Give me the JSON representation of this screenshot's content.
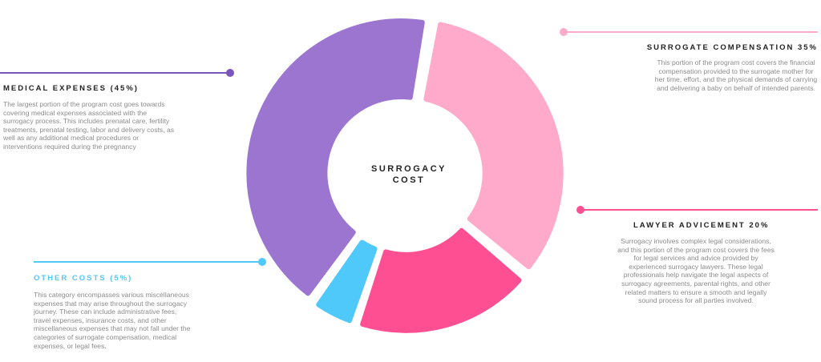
{
  "chart_data": {
    "type": "donut",
    "center_label": "SURROGACY COST",
    "categories": [
      "SURROGATE COMPENSATION 35%",
      "LAWYER ADVICEMENT 20%",
      "OTHER COSTS (5%)",
      "MEDICAL EXPENSES (45%)"
    ],
    "values": [
      35,
      20,
      5,
      45
    ],
    "colors": [
      "#ffaacb",
      "#ff4f93",
      "#4fc8fa",
      "#9b75d0"
    ],
    "descriptions": [
      "This portion of the program cost covers the financial compensation provided to the surrogate mother for her time, effort, and the physical demands of carrying and delivering a baby on behalf of intended parents.",
      "Surrogacy involves complex legal considerations, and this portion of the program cost covers the fees for legal services and advice provided by experienced surrogacy lawyers. These legal professionals help navigate the legal aspects of surrogacy agreements, parental rights, and other related matters to ensure a smooth and legally sound process for all parties involved.",
      "This category encompasses various miscellaneous expenses that may arise throughout the surrogacy journey. These can include administrative fees, travel expenses, insurance costs, and other miscellaneous expenses that may not fall under the categories of surrogate compensation, medical expenses, or legal fees.",
      "The largest portion of the program cost goes towards covering medical expenses associated with the surrogacy process. This includes prenatal care, fertility treatments, prenatal testing, labor and delivery costs, as well as any additional medical procedures or interventions required during the pregnancy"
    ]
  }
}
